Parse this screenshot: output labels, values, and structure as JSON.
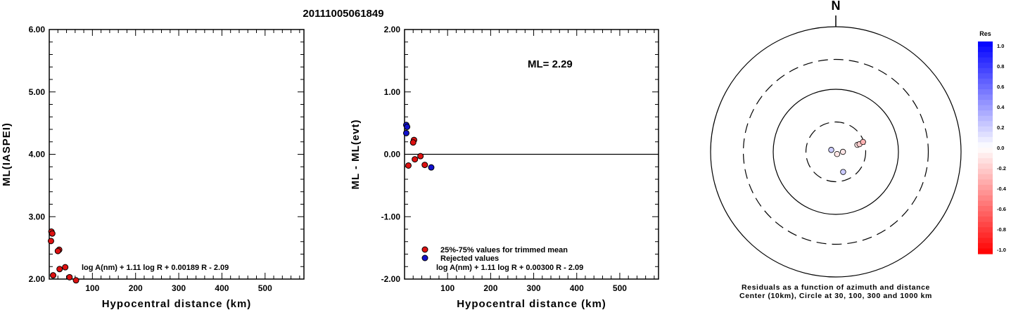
{
  "title": "20111005061849",
  "chart_data": [
    {
      "type": "scatter",
      "xlabel": "Hypocentral distance (km)",
      "ylabel": "ML(IASPEI)",
      "xlim": [
        0,
        590
      ],
      "ylim": [
        2.0,
        6.0
      ],
      "xticks": [
        100,
        200,
        300,
        400,
        500
      ],
      "xtick_labels": [
        "100",
        "200",
        "300",
        "400",
        "500"
      ],
      "yticks": [
        2.0,
        3.0,
        4.0,
        5.0,
        6.0
      ],
      "ytick_labels": [
        "2.00",
        "3.00",
        "4.00",
        "5.00",
        "6.00"
      ],
      "formula": "log A(nm) + 1.11 log R + 0.00189 R - 2.09",
      "series": [
        {
          "color": "#dd1111",
          "points": [
            {
              "x": 5,
              "y": 2.76
            },
            {
              "x": 7,
              "y": 2.73
            },
            {
              "x": 4,
              "y": 2.61
            },
            {
              "x": 23,
              "y": 2.47
            },
            {
              "x": 20,
              "y": 2.45
            },
            {
              "x": 37,
              "y": 2.19
            },
            {
              "x": 24,
              "y": 2.16
            },
            {
              "x": 9,
              "y": 2.06
            },
            {
              "x": 47,
              "y": 2.03
            },
            {
              "x": 62,
              "y": 1.98
            }
          ]
        }
      ]
    },
    {
      "type": "scatter",
      "xlabel": "Hypocentral distance (km)",
      "ylabel": "ML - ML(evt)",
      "xlim": [
        0,
        590
      ],
      "ylim": [
        -2.0,
        2.0
      ],
      "xticks": [
        100,
        200,
        300,
        400,
        500
      ],
      "xtick_labels": [
        "100",
        "200",
        "300",
        "400",
        "500"
      ],
      "yticks": [
        -2.0,
        -1.0,
        0.0,
        1.0,
        2.0
      ],
      "ytick_labels": [
        "-2.00",
        "-1.00",
        "0.00",
        "1.00",
        "2.00"
      ],
      "reference_line": 0.0,
      "ml_label": "ML= 2.29",
      "formula": "log A(nm) + 1.11 log R + 0.00300 R - 2.09",
      "legend": [
        {
          "label": "25%-75% values for trimmed mean",
          "color": "#dd1111"
        },
        {
          "label": "Rejected values",
          "color": "#1111cc"
        }
      ],
      "series": [
        {
          "color": "#dd1111",
          "points": [
            {
              "x": 22,
              "y": 0.23
            },
            {
              "x": 20,
              "y": 0.19
            },
            {
              "x": 37,
              "y": -0.03
            },
            {
              "x": 24,
              "y": -0.08
            },
            {
              "x": 9,
              "y": -0.18
            },
            {
              "x": 47,
              "y": -0.17
            }
          ]
        },
        {
          "color": "#1111cc",
          "points": [
            {
              "x": 4,
              "y": 0.47
            },
            {
              "x": 6,
              "y": 0.44
            },
            {
              "x": 4,
              "y": 0.34
            },
            {
              "x": 62,
              "y": -0.21
            }
          ]
        }
      ]
    },
    {
      "type": "polar-scatter",
      "north_label": "N",
      "caption_line1": "Residuals as a function of azimuth and distance",
      "caption_line2": "Center (10km), Circle at 30, 100, 300 and 1000 km",
      "rings": [
        {
          "distance_km": 30,
          "style": "dashed"
        },
        {
          "distance_km": 100,
          "style": "solid"
        },
        {
          "distance_km": 300,
          "style": "dashed"
        },
        {
          "distance_km": 1000,
          "style": "solid"
        }
      ],
      "points": [
        {
          "azimuth_deg": 293,
          "distance_km": 12,
          "residual": 0.2
        },
        {
          "azimuth_deg": 150,
          "distance_km": 11,
          "residual": -0.1
        },
        {
          "azimuth_deg": 90,
          "distance_km": 13,
          "residual": -0.1
        },
        {
          "azimuth_deg": 160,
          "distance_km": 22,
          "residual": 0.2
        },
        {
          "azimuth_deg": 72,
          "distance_km": 23,
          "residual": -0.1
        },
        {
          "azimuth_deg": 72,
          "distance_km": 25,
          "residual": -0.2
        },
        {
          "azimuth_deg": 70,
          "distance_km": 29,
          "residual": -0.3
        }
      ],
      "colorbar": {
        "title": "Res",
        "ticks": [
          "1.0",
          "0.8",
          "0.6",
          "0.4",
          "0.2",
          "0.0",
          "-0.2",
          "-0.4",
          "-0.6",
          "-0.8",
          "-1.0"
        ]
      }
    }
  ]
}
